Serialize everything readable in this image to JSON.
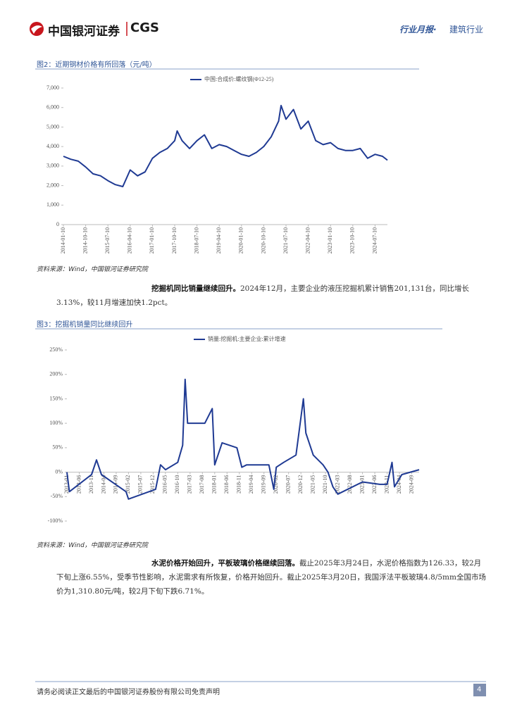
{
  "header": {
    "brand": "中国银河证券",
    "brand_en": "CGS",
    "report_type": "行业月报·",
    "industry": "建筑行业"
  },
  "chart_data": [
    {
      "type": "line",
      "title": "图2：近期钢材价格有所回落（元/吨）",
      "source": "资料来源：Wind，中国银河证券研究院",
      "x": [
        "2014-01-10",
        "2014-04-10",
        "2014-07-10",
        "2014-10-10",
        "2015-01-10",
        "2015-04-10",
        "2015-07-10",
        "2015-10-10",
        "2016-01-10",
        "2016-04-10",
        "2016-07-10",
        "2016-10-10",
        "2017-01-10",
        "2017-04-10",
        "2017-07-10",
        "2017-10-10",
        "2017-11-10",
        "2018-01-10",
        "2018-04-10",
        "2018-07-10",
        "2018-10-10",
        "2019-01-10",
        "2019-04-10",
        "2019-07-10",
        "2019-10-10",
        "2020-01-10",
        "2020-04-10",
        "2020-07-10",
        "2020-10-10",
        "2021-01-10",
        "2021-04-10",
        "2021-05-10",
        "2021-07-10",
        "2021-10-10",
        "2022-01-10",
        "2022-04-10",
        "2022-07-10",
        "2022-10-10",
        "2023-01-10",
        "2023-04-10",
        "2023-07-10",
        "2023-10-10",
        "2024-01-10",
        "2024-04-10",
        "2024-07-10",
        "2024-10-10",
        "2024-12-10"
      ],
      "series": [
        {
          "name": "中国:合成价:螺纹钢(Φ12-25)",
          "color": "#1f3a93",
          "values": [
            3500,
            3350,
            3250,
            2950,
            2600,
            2500,
            2250,
            2050,
            1950,
            2800,
            2500,
            2700,
            3400,
            3700,
            3900,
            4300,
            4800,
            4300,
            3900,
            4300,
            4600,
            3900,
            4100,
            4000,
            3800,
            3600,
            3500,
            3700,
            4000,
            4500,
            5300,
            6100,
            5400,
            5900,
            4900,
            5300,
            4300,
            4100,
            4200,
            3900,
            3800,
            3800,
            3900,
            3400,
            3600,
            3500,
            3300
          ]
        }
      ],
      "xlim": [
        "2014-01-10",
        "2024-12-10"
      ],
      "xticks": [
        "2014-01-10",
        "2014-10-10",
        "2015-07-10",
        "2016-04-10",
        "2017-01-10",
        "2017-10-10",
        "2018-07-10",
        "2019-04-10",
        "2020-01-10",
        "2020-10-10",
        "2021-07-10",
        "2022-04-10",
        "2023-01-10",
        "2023-10-10",
        "2024-07-10"
      ],
      "ylim": [
        0,
        7000
      ],
      "yticks": [
        0,
        {
          "value": 1000,
          "label": "1,000"
        },
        {
          "value": 2000,
          "label": "2,000"
        },
        {
          "value": 3000,
          "label": "3,000"
        },
        {
          "value": 4000,
          "label": "4,000"
        },
        {
          "value": 5000,
          "label": "5,000"
        },
        {
          "value": 6000,
          "label": "6,000"
        },
        {
          "value": 7000,
          "label": "7,000"
        }
      ]
    },
    {
      "type": "line",
      "title": "图3：挖掘机销量同比继续回升",
      "source": "资料来源：Wind，中国银河证券研究院",
      "x": [
        "2013-01",
        "2013-02",
        "2013-11",
        "2014-01",
        "2014-03",
        "2015-01",
        "2015-02",
        "2016-01",
        "2016-03",
        "2016-05",
        "2016-10",
        "2016-12",
        "2017-01",
        "2017-02",
        "2017-09",
        "2017-12",
        "2018-01",
        "2018-04",
        "2018-10",
        "2018-12",
        "2019-02",
        "2019-11",
        "2020-01",
        "2020-02",
        "2020-05",
        "2020-10",
        "2021-01",
        "2021-02",
        "2021-05",
        "2021-09",
        "2021-11",
        "2022-01",
        "2022-03",
        "2023-01",
        "2023-08",
        "2023-11",
        "2024-01",
        "2024-02",
        "2024-05",
        "2024-12"
      ],
      "series": [
        {
          "name": "销量:挖掘机:主要企业:累计增速",
          "color": "#1f3a93",
          "values": [
            0,
            -40,
            -5,
            25,
            -5,
            -40,
            -55,
            -35,
            15,
            5,
            20,
            55,
            190,
            100,
            100,
            130,
            15,
            60,
            50,
            10,
            15,
            15,
            -35,
            10,
            20,
            35,
            150,
            80,
            35,
            15,
            0,
            -30,
            -45,
            -20,
            -25,
            -25,
            20,
            -30,
            -5,
            5
          ]
        }
      ],
      "xlim": [
        "2013-01",
        "2024-12"
      ],
      "xticks": [
        "2013-01",
        "2013-06",
        "2013-11",
        "2014-04",
        "2014-09",
        "2015-02",
        "2015-07",
        "2015-12",
        "2016-05",
        "2016-10",
        "2017-03",
        "2017-08",
        "2018-01",
        "2018-06",
        "2018-11",
        "2019-04",
        "2019-09",
        "2020-02",
        "2020-07",
        "2020-12",
        "2021-05",
        "2021-10",
        "2022-03",
        "2022-08",
        "2023-01",
        "2023-06",
        "2023-11",
        "2024-04",
        "2024-09"
      ],
      "ylim": [
        -100,
        250
      ],
      "yticks": [
        {
          "value": -100,
          "label": "-100%"
        },
        {
          "value": -50,
          "label": "-50%"
        },
        {
          "value": 0,
          "label": "0%"
        },
        {
          "value": 50,
          "label": "50%"
        },
        {
          "value": 100,
          "label": "100%"
        },
        {
          "value": 150,
          "label": "150%"
        },
        {
          "value": 200,
          "label": "200%"
        },
        {
          "value": 250,
          "label": "250%"
        }
      ]
    }
  ],
  "paragraphs": [
    {
      "lead": "挖掘机同比销量继续回升。",
      "text": "2024年12月，主要企业的液压挖掘机累计销售201,131台，同比增长3.13%，较11月增速加快1.2pct。"
    },
    {
      "lead": "水泥价格开始回升，平板玻璃价格继续回落。",
      "text": "截止2025年3月24日，水泥价格指数为126.33，较2月下旬上涨6.55%，受季节性影响，水泥需求有所恢复，价格开始回升。截止2025年3月20日，我国浮法平板玻璃4.8/5mm全国市场价为1,310.80元/吨，较2月下旬下跌6.71%。"
    }
  ],
  "footer": {
    "disclaimer": "请务必阅读正文最后的中国银河证券股份有限公司免责声明",
    "page": "4"
  }
}
